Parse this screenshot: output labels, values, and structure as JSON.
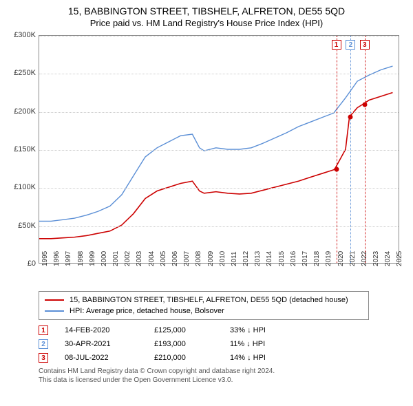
{
  "title": "15, BABBINGTON STREET, TIBSHELF, ALFRETON, DE55 5QD",
  "subtitle": "Price paid vs. HM Land Registry's House Price Index (HPI)",
  "chart": {
    "type": "line",
    "background_color": "#ffffff",
    "border_color": "#888888",
    "grid_color": "#cccccc",
    "ylim": [
      0,
      300000
    ],
    "ytick_step": 50000,
    "yticks": [
      "£0",
      "£50K",
      "£100K",
      "£150K",
      "£200K",
      "£250K",
      "£300K"
    ],
    "xlim": [
      1995,
      2025.5
    ],
    "xticks": [
      1995,
      1996,
      1997,
      1998,
      1999,
      2000,
      2001,
      2002,
      2003,
      2004,
      2005,
      2006,
      2007,
      2008,
      2009,
      2010,
      2011,
      2012,
      2013,
      2014,
      2015,
      2016,
      2017,
      2018,
      2019,
      2020,
      2021,
      2022,
      2023,
      2024,
      2025
    ],
    "label_fontsize": 11,
    "series": [
      {
        "name": "property",
        "color": "#cc0000",
        "width": 1.6,
        "data": [
          [
            1995,
            32000
          ],
          [
            1996,
            32000
          ],
          [
            1997,
            33000
          ],
          [
            1998,
            34000
          ],
          [
            1999,
            36000
          ],
          [
            2000,
            39000
          ],
          [
            2001,
            42000
          ],
          [
            2002,
            50000
          ],
          [
            2003,
            65000
          ],
          [
            2004,
            85000
          ],
          [
            2005,
            95000
          ],
          [
            2006,
            100000
          ],
          [
            2007,
            105000
          ],
          [
            2008,
            108000
          ],
          [
            2008.6,
            95000
          ],
          [
            2009,
            92000
          ],
          [
            2010,
            94000
          ],
          [
            2011,
            92000
          ],
          [
            2012,
            91000
          ],
          [
            2013,
            92000
          ],
          [
            2014,
            96000
          ],
          [
            2015,
            100000
          ],
          [
            2016,
            104000
          ],
          [
            2017,
            108000
          ],
          [
            2018,
            113000
          ],
          [
            2019,
            118000
          ],
          [
            2020,
            123000
          ],
          [
            2020.12,
            125000
          ],
          [
            2021,
            150000
          ],
          [
            2021.33,
            193000
          ],
          [
            2022,
            205000
          ],
          [
            2022.52,
            210000
          ],
          [
            2023,
            215000
          ],
          [
            2024,
            220000
          ],
          [
            2025,
            225000
          ]
        ]
      },
      {
        "name": "hpi",
        "color": "#5b8fd6",
        "width": 1.4,
        "data": [
          [
            1995,
            55000
          ],
          [
            1996,
            55000
          ],
          [
            1997,
            57000
          ],
          [
            1998,
            59000
          ],
          [
            1999,
            63000
          ],
          [
            2000,
            68000
          ],
          [
            2001,
            75000
          ],
          [
            2002,
            90000
          ],
          [
            2003,
            115000
          ],
          [
            2004,
            140000
          ],
          [
            2005,
            152000
          ],
          [
            2006,
            160000
          ],
          [
            2007,
            168000
          ],
          [
            2008,
            170000
          ],
          [
            2008.6,
            152000
          ],
          [
            2009,
            148000
          ],
          [
            2010,
            152000
          ],
          [
            2011,
            150000
          ],
          [
            2012,
            150000
          ],
          [
            2013,
            152000
          ],
          [
            2014,
            158000
          ],
          [
            2015,
            165000
          ],
          [
            2016,
            172000
          ],
          [
            2017,
            180000
          ],
          [
            2018,
            186000
          ],
          [
            2019,
            192000
          ],
          [
            2020,
            198000
          ],
          [
            2021,
            218000
          ],
          [
            2022,
            240000
          ],
          [
            2023,
            248000
          ],
          [
            2024,
            255000
          ],
          [
            2025,
            260000
          ]
        ]
      }
    ],
    "markers": [
      {
        "num": "1",
        "x": 2020.12,
        "y": 125000,
        "color": "#cc0000",
        "vline_color": "#cc0000"
      },
      {
        "num": "2",
        "x": 2021.33,
        "y": 193000,
        "color": "#5b8fd6",
        "vline_color": "#5b8fd6"
      },
      {
        "num": "3",
        "x": 2022.52,
        "y": 210000,
        "color": "#cc0000",
        "vline_color": "#cc0000"
      }
    ]
  },
  "legend": {
    "items": [
      {
        "color": "#cc0000",
        "label": "15, BABBINGTON STREET, TIBSHELF, ALFRETON, DE55 5QD (detached house)"
      },
      {
        "color": "#5b8fd6",
        "label": "HPI: Average price, detached house, Bolsover"
      }
    ]
  },
  "sales": [
    {
      "num": "1",
      "color": "#cc0000",
      "date": "14-FEB-2020",
      "price": "£125,000",
      "diff": "33% ↓ HPI"
    },
    {
      "num": "2",
      "color": "#5b8fd6",
      "date": "30-APR-2021",
      "price": "£193,000",
      "diff": "11% ↓ HPI"
    },
    {
      "num": "3",
      "color": "#cc0000",
      "date": "08-JUL-2022",
      "price": "£210,000",
      "diff": "14% ↓ HPI"
    }
  ],
  "footer": {
    "line1": "Contains HM Land Registry data © Crown copyright and database right 2024.",
    "line2": "This data is licensed under the Open Government Licence v3.0."
  }
}
